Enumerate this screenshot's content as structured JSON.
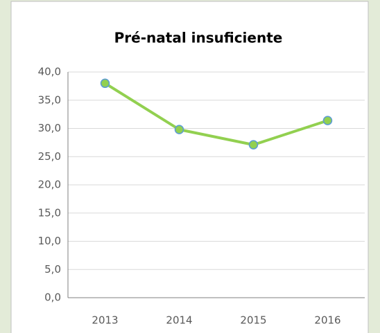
{
  "chart_data": {
    "type": "line",
    "title": "Pré-natal insuficiente",
    "categories": [
      "2013",
      "2014",
      "2015",
      "2016"
    ],
    "series": [
      {
        "name": "Pré-natal insuficiente",
        "color": "#92d050",
        "marker_edge": "#5b9bd5",
        "values": [
          38.0,
          29.8,
          27.1,
          31.4
        ]
      }
    ],
    "ylim": [
      0,
      40
    ],
    "yticks": [
      {
        "value": 0,
        "label": "0,0"
      },
      {
        "value": 5,
        "label": "5,0"
      },
      {
        "value": 10,
        "label": "10,0"
      },
      {
        "value": 15,
        "label": "15,0"
      },
      {
        "value": 20,
        "label": "20,0"
      },
      {
        "value": 25,
        "label": "25,0"
      },
      {
        "value": 30,
        "label": "30,0"
      },
      {
        "value": 35,
        "label": "35,0"
      },
      {
        "value": 40,
        "label": "40,0"
      }
    ],
    "grid": true,
    "legend": false
  }
}
